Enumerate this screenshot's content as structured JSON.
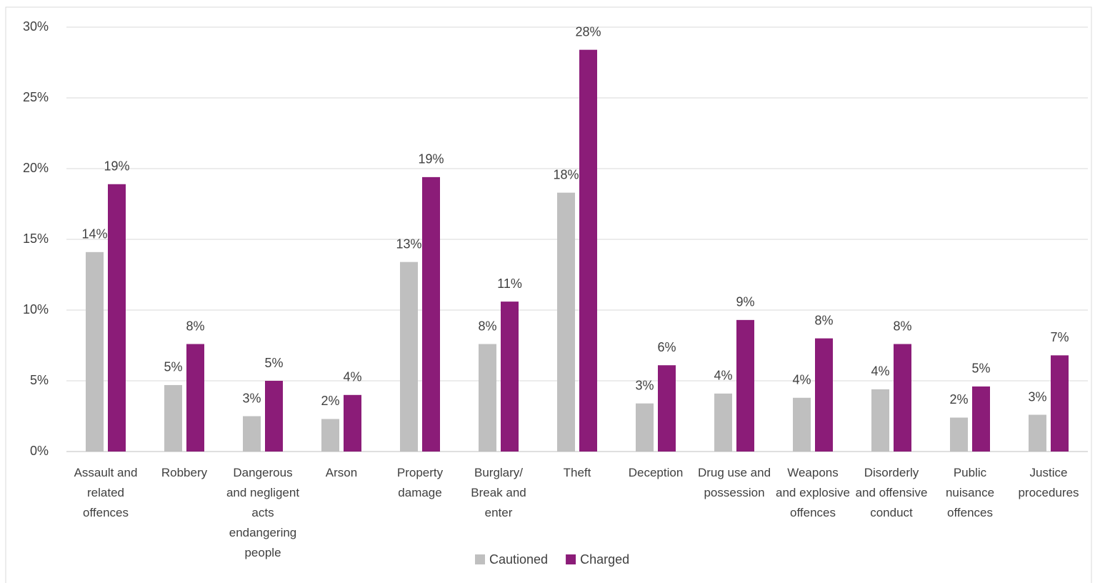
{
  "chart_data": {
    "type": "bar",
    "categories": [
      "Assault and related offences",
      "Robbery",
      "Dangerous and negligent acts endangering people",
      "Arson",
      "Property damage",
      "Burglary/ Break and enter",
      "Theft",
      "Deception",
      "Drug use and possession",
      "Weapons and explosive offences",
      "Disorderly and offensive conduct",
      "Public nuisance offences",
      "Justice procedures"
    ],
    "series": [
      {
        "name": "Cautioned",
        "color": "#bfbfbf",
        "values": [
          14.1,
          4.7,
          2.5,
          2.3,
          13.4,
          7.6,
          18.3,
          3.4,
          4.1,
          3.8,
          4.4,
          2.4,
          2.6
        ],
        "value_labels": [
          "14%",
          "5%",
          "3%",
          "2%",
          "13%",
          "8%",
          "18%",
          "3%",
          "4%",
          "4%",
          "4%",
          "2%",
          "3%"
        ]
      },
      {
        "name": "Charged",
        "color": "#8b1c78",
        "values": [
          18.9,
          7.6,
          5.0,
          4.0,
          19.4,
          10.6,
          28.4,
          6.1,
          9.3,
          8.0,
          7.6,
          4.6,
          6.8
        ],
        "value_labels": [
          "19%",
          "8%",
          "5%",
          "4%",
          "19%",
          "11%",
          "28%",
          "6%",
          "9%",
          "8%",
          "8%",
          "5%",
          "7%"
        ]
      }
    ],
    "ylim": [
      0,
      30
    ],
    "yticks": [
      {
        "value": 0,
        "label": "0%"
      },
      {
        "value": 5,
        "label": "5%"
      },
      {
        "value": 10,
        "label": "10%"
      },
      {
        "value": 15,
        "label": "15%"
      },
      {
        "value": 20,
        "label": "20%"
      },
      {
        "value": 25,
        "label": "25%"
      },
      {
        "value": 30,
        "label": "30%"
      }
    ],
    "grid": true,
    "legend": "bottom"
  }
}
